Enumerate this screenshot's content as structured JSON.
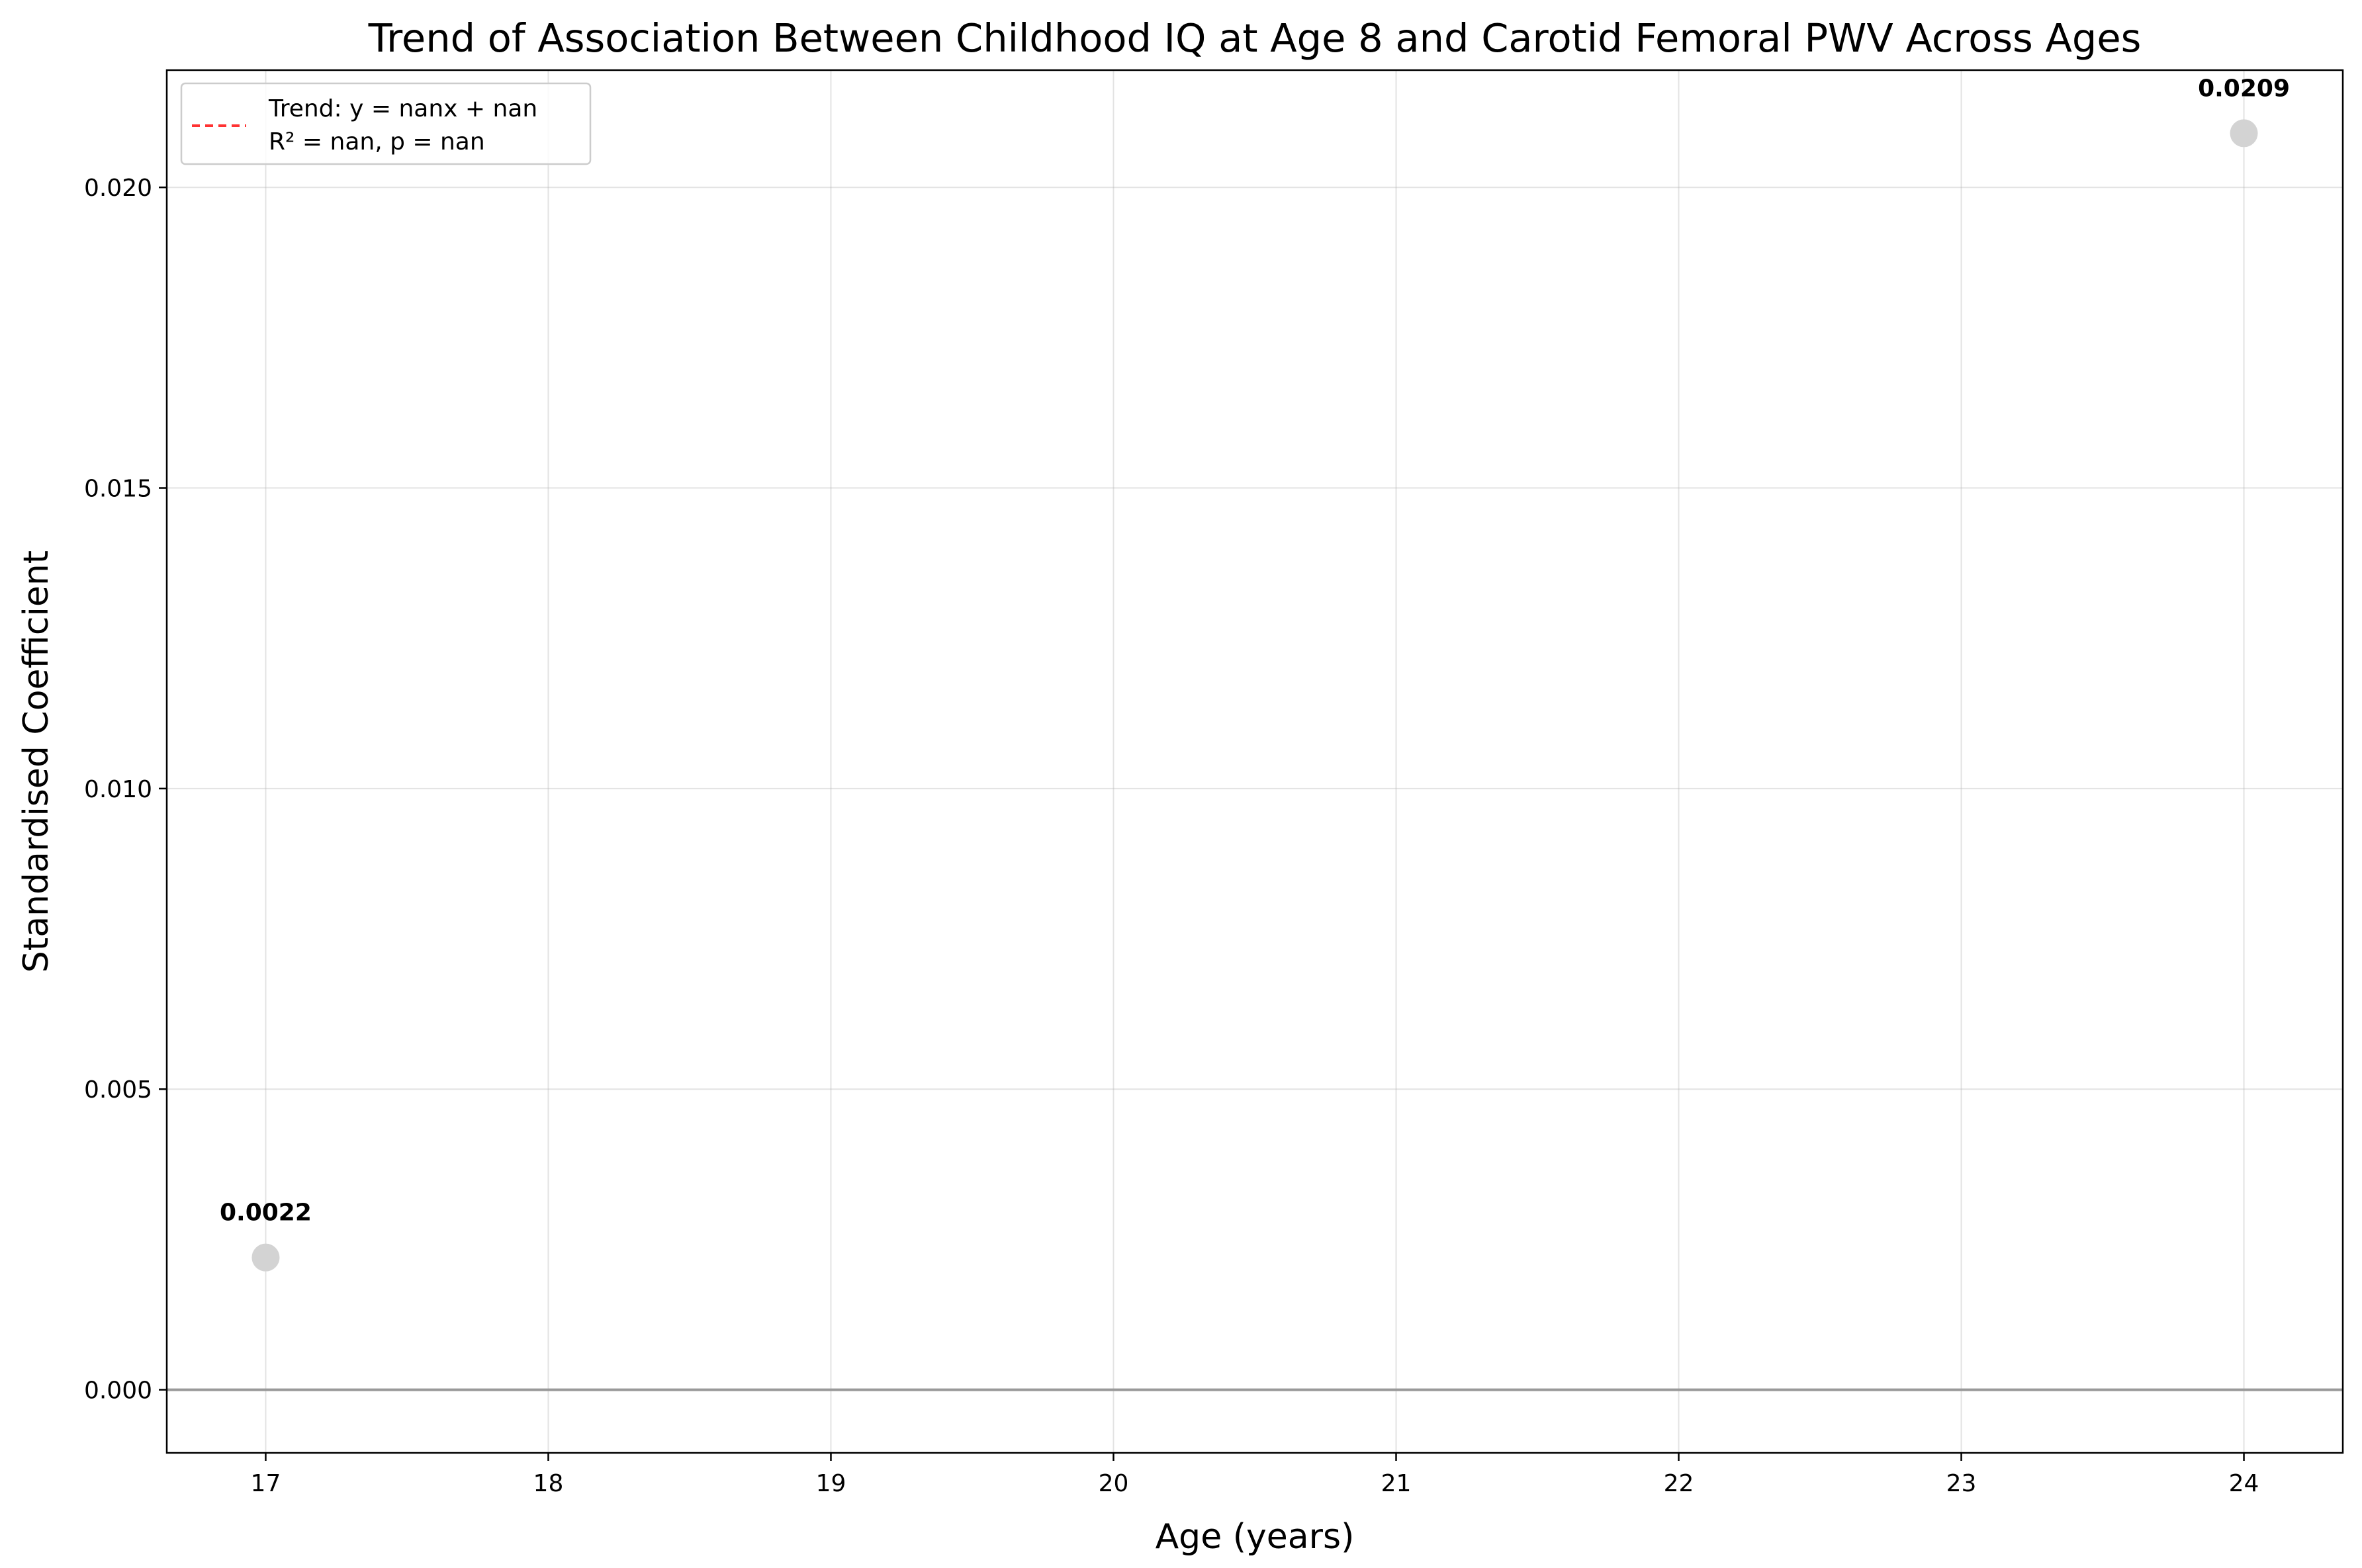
{
  "chart_data": {
    "type": "scatter",
    "title": "Trend of Association Between Childhood IQ at Age 8 and Carotid Femoral PWV Across Ages",
    "xlabel": "Age (years)",
    "ylabel": "Standardised Coefficient",
    "xlim": [
      16.65,
      24.35
    ],
    "ylim": [
      -0.00105,
      0.02195
    ],
    "xticks": [
      17,
      18,
      19,
      20,
      21,
      22,
      23,
      24
    ],
    "xtick_labels": [
      "17",
      "18",
      "19",
      "20",
      "21",
      "22",
      "23",
      "24"
    ],
    "yticks": [
      0.0,
      0.005,
      0.01,
      0.015,
      0.02
    ],
    "ytick_labels": [
      "0.000",
      "0.005",
      "0.010",
      "0.015",
      "0.020"
    ],
    "grid": true,
    "reference_line_y": 0,
    "series": [
      {
        "x": [
          17,
          24
        ],
        "y": [
          0.0022,
          0.0209
        ],
        "labels": [
          "0.0022",
          "0.0209"
        ],
        "color": "#d3d3d3"
      }
    ],
    "legend": {
      "placement": "top-left",
      "entries": [
        {
          "line1": "Trend: y = nanx + nan",
          "line2": "R² = nan, p = nan",
          "color": "#ff3333",
          "style": "dashed"
        }
      ]
    },
    "colors": {
      "reference_line": "#999999",
      "trend_line": "#ff3333",
      "points": "#d3d3d3"
    }
  }
}
